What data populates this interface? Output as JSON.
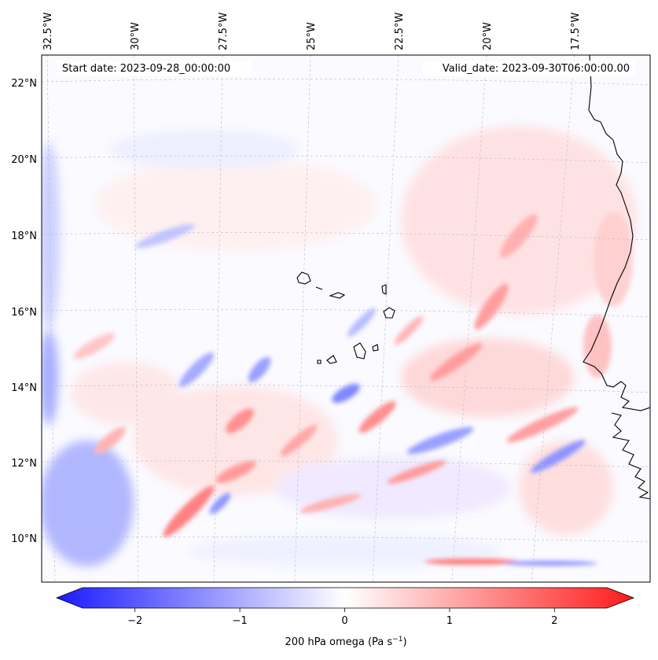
{
  "header": {
    "start_date": "Start date: 2023-09-28_00:00:00",
    "valid_date": "Valid_date: 2023-09-30T06:00:00.00"
  },
  "lon_labels": [
    "32.5°W",
    "30°W",
    "27.5°W",
    "25°W",
    "22.5°W",
    "20°W",
    "17.5°W"
  ],
  "lat_labels": [
    "22°N",
    "20°N",
    "18°N",
    "16°N",
    "14°N",
    "12°N",
    "10°N"
  ],
  "colorbar": {
    "label": "200 hPa omega (Pa s",
    "label_sup": "−1",
    "label_close": ")",
    "ticks": [
      "−2",
      "−1",
      "0",
      "1",
      "2"
    ],
    "tick_values": [
      -2,
      -1,
      0,
      1,
      2
    ],
    "range": [
      -2.6,
      2.6
    ],
    "colormap": "bwr",
    "neg_color": "#0000ff",
    "mid_color": "#ffffff",
    "pos_color": "#ff0000"
  },
  "map": {
    "variable": "200 hPa omega",
    "region": "Cabo Verde / West African coast",
    "coast_color": "#000000",
    "gridline_color": "#b9b9c9"
  }
}
